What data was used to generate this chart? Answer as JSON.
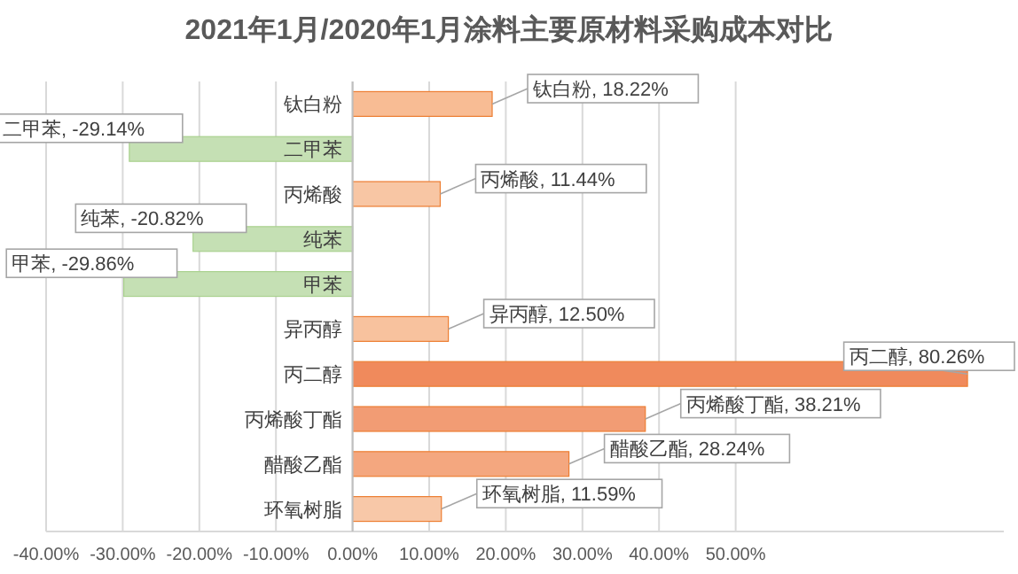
{
  "chart_data": {
    "type": "bar",
    "orientation": "horizontal",
    "title": "2021年1月/2020年1月涂料主要原材料采购成本对比",
    "categories": [
      "钛白粉",
      "二甲苯",
      "丙烯酸",
      "纯苯",
      "甲苯",
      "异丙醇",
      "丙二醇",
      "丙烯酸丁酯",
      "醋酸乙酯",
      "环氧树脂"
    ],
    "values": [
      18.22,
      -29.14,
      11.44,
      -20.82,
      -29.86,
      12.5,
      80.26,
      38.21,
      28.24,
      11.59
    ],
    "colors": [
      "#f8bc94",
      "#c5e0b4",
      "#f8c6a4",
      "#c5e0b4",
      "#c5e0b4",
      "#f8c29e",
      "#f08a5c",
      "#f29c74",
      "#f4a77f",
      "#f8c8a8"
    ],
    "value_labels": [
      "钛白粉, 18.22%",
      "二甲苯, -29.14%",
      "丙烯酸, 11.44%",
      "纯苯, -20.82%",
      "甲苯, -29.86%",
      "异丙醇, 12.50%",
      "丙二醇, 80.26%",
      "丙烯酸丁酯, 38.21%",
      "醋酸乙酯, 28.24%",
      "环氧树脂, 11.59%"
    ],
    "xlim": [
      -40,
      85
    ],
    "xticks": [
      {
        "value": -40,
        "label": "-40.00%"
      },
      {
        "value": -30,
        "label": "-30.00%"
      },
      {
        "value": -20,
        "label": "-20.00%"
      },
      {
        "value": -10,
        "label": "-10.00%"
      },
      {
        "value": 0,
        "label": "0.00%"
      },
      {
        "value": 10,
        "label": "10.00%"
      },
      {
        "value": 20,
        "label": "20.00%"
      },
      {
        "value": 30,
        "label": "30.00%"
      },
      {
        "value": 40,
        "label": "40.00%"
      },
      {
        "value": 50,
        "label": "50.00%"
      }
    ],
    "grid": "x"
  }
}
